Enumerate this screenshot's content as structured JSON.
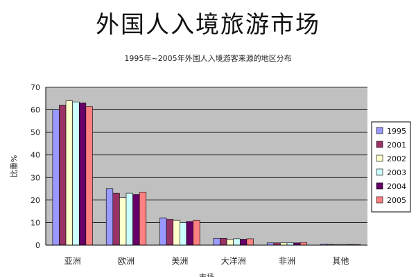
{
  "page": {
    "title": "外国人入境旅游市场"
  },
  "chart_data": {
    "type": "bar",
    "title": "1995年~2005年外国人入境游客来源的地区分布",
    "xlabel": "市场",
    "ylabel": "比重%",
    "ylim": [
      0,
      70
    ],
    "yticks": [
      0,
      10,
      20,
      30,
      40,
      50,
      60,
      70
    ],
    "grid": true,
    "legend_position": "right",
    "categories": [
      "亚洲",
      "欧洲",
      "美洲",
      "大洋洲",
      "非洲",
      "其他"
    ],
    "series": [
      {
        "name": "1995",
        "color": "#9999ff",
        "values": [
          60,
          25,
          12,
          3,
          1,
          0.5
        ]
      },
      {
        "name": "2001",
        "color": "#993366",
        "values": [
          62,
          23,
          11.5,
          3,
          1,
          0.3
        ]
      },
      {
        "name": "2002",
        "color": "#ffffcc",
        "values": [
          64,
          21,
          11,
          2.5,
          1,
          0.3
        ]
      },
      {
        "name": "2003",
        "color": "#ccffff",
        "values": [
          63.5,
          23,
          10,
          2.8,
          1,
          0.3
        ]
      },
      {
        "name": "2004",
        "color": "#660066",
        "values": [
          63,
          22.5,
          10.5,
          2.6,
          1,
          0.3
        ]
      },
      {
        "name": "2005",
        "color": "#ff8080",
        "values": [
          61.5,
          23.5,
          11,
          2.8,
          1.2,
          0.3
        ]
      }
    ],
    "colors": {
      "plot_background": "#c0c0c0",
      "gridline": "#000000",
      "bar_outline": "#000000"
    }
  }
}
